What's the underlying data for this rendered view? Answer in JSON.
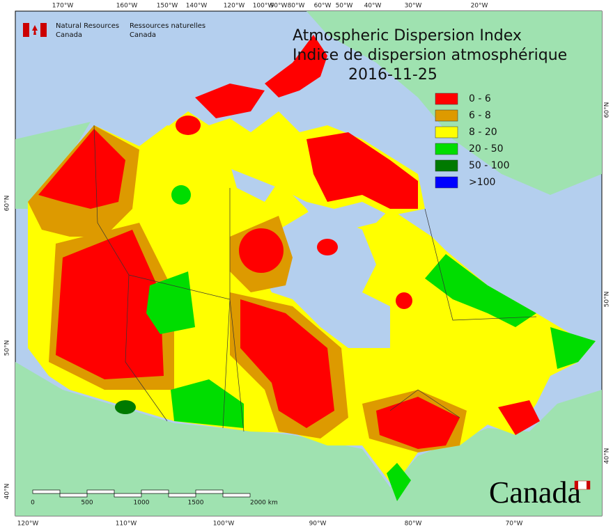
{
  "header": {
    "agency_en": "Natural Resources",
    "country_en": "Canada",
    "agency_fr": "Ressources naturelles",
    "country_fr": "Canada"
  },
  "title": {
    "en": "Atmospheric Dispersion Index",
    "fr": "Indice de dispersion atmosphérique",
    "date": "2016-11-25"
  },
  "legend": {
    "items": [
      {
        "label": "0 - 6",
        "color": "#ff0000"
      },
      {
        "label": "6 - 8",
        "color": "#dd9a00"
      },
      {
        "label": "8 - 20",
        "color": "#ffff00"
      },
      {
        "label": "20 - 50",
        "color": "#00dd00"
      },
      {
        "label": "50 - 100",
        "color": "#007a00"
      },
      {
        "label": ">100",
        "color": "#0000ff"
      }
    ]
  },
  "graticule": {
    "top": [
      "170°W",
      "160°W",
      "150°W",
      "140°W",
      "120°W",
      "100°W",
      "90°W",
      "80°W",
      "60°W",
      "50°W",
      "40°W",
      "30°W",
      "20°W"
    ],
    "bottom": [
      "120°W",
      "110°W",
      "100°W",
      "90°W",
      "80°W",
      "70°W"
    ],
    "left": [
      "60°N",
      "50°N",
      "40°N"
    ],
    "right": [
      "60°N",
      "50°N",
      "40°N"
    ]
  },
  "scale_bar": {
    "labels": [
      "0",
      "500",
      "1000",
      "1500",
      "2000 km"
    ]
  },
  "wordmark": "Canada"
}
